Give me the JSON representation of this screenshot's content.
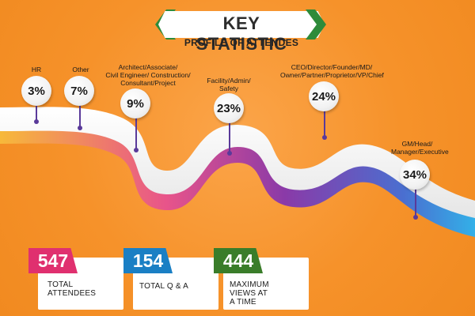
{
  "header": {
    "title": "KEY STATISTIC",
    "subtitle": "PROFILE OF ATTENDES"
  },
  "categories": [
    {
      "label": "HR",
      "value": "3%"
    },
    {
      "label": "Other",
      "value": "7%"
    },
    {
      "label": "Architect/Associate/\nCivil Engineer/ Construction/\nConsultant/Project",
      "value": "9%"
    },
    {
      "label": "Facility/Admin/\nSafety",
      "value": "23%"
    },
    {
      "label": "CEO/Director/Founder/MD/\nOwner/Partner/Proprietor/VP/Chief",
      "value": "24%"
    },
    {
      "label": "GM/Head/\nManager/Executive",
      "value": "34%"
    }
  ],
  "stats": [
    {
      "number": "547",
      "label": "TOTAL\nATTENDEES",
      "color": "#e0306f"
    },
    {
      "number": "154",
      "label": "TOTAL Q & A",
      "color": "#1a7fc4"
    },
    {
      "number": "444",
      "label": "MAXIMUM\nVIEWS AT\nA TIME",
      "color": "#3a7d2a"
    }
  ],
  "colors": {
    "background": "#f6922a",
    "accent_green": "#2e8b3a",
    "pin": "#5a3a9a"
  }
}
